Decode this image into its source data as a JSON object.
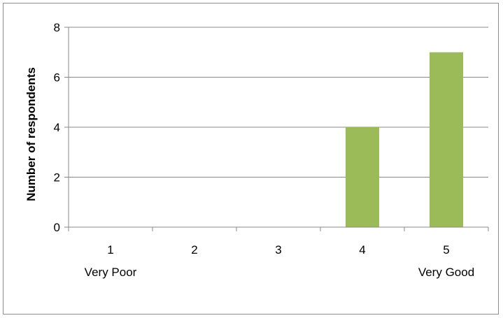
{
  "chart_data": {
    "type": "bar",
    "title": "",
    "xlabel": "",
    "ylabel": "Number of respondents",
    "categories": [
      "1",
      "2",
      "3",
      "4",
      "5"
    ],
    "category_sublabels": [
      "Very Poor",
      "",
      "",
      "",
      "Very Good"
    ],
    "values": [
      0,
      0,
      0,
      4,
      7
    ],
    "ylim": [
      0,
      8
    ],
    "yticks": [
      0,
      2,
      4,
      6,
      8
    ],
    "grid": true,
    "legend": "none",
    "bar_color": "#9BBB59",
    "gridline_color": "#888888",
    "axis_color": "#888888"
  }
}
